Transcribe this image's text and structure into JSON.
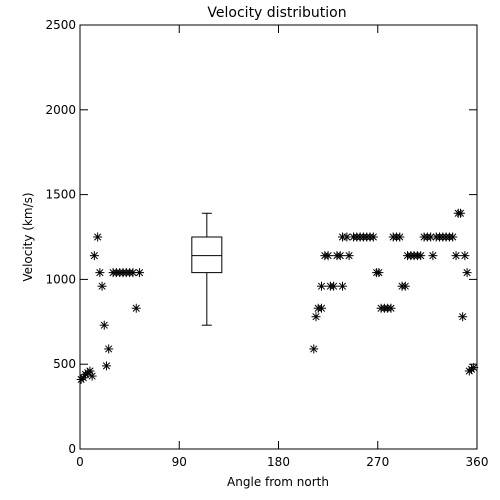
{
  "chart_data": {
    "type": "scatter",
    "title": "Velocity distribution",
    "xlabel": "Angle from north",
    "ylabel": "Velocity (km/s)",
    "xlim": [
      0,
      360
    ],
    "ylim": [
      0,
      2500
    ],
    "x_ticks": [
      0,
      90,
      180,
      270,
      360
    ],
    "x_tick_labels": [
      "0",
      "90",
      "180",
      "270",
      "360"
    ],
    "y_ticks": [
      0,
      500,
      1000,
      1500,
      2000,
      2500
    ],
    "y_tick_labels": [
      "0",
      "500",
      "1000",
      "1500",
      "2000",
      "2500"
    ],
    "grid": false,
    "legend": "none",
    "marker": "asterisk",
    "points": [
      {
        "x": 1,
        "y": 410
      },
      {
        "x": 3,
        "y": 420
      },
      {
        "x": 5,
        "y": 440
      },
      {
        "x": 7,
        "y": 450
      },
      {
        "x": 9,
        "y": 460
      },
      {
        "x": 11,
        "y": 430
      },
      {
        "x": 13,
        "y": 1140
      },
      {
        "x": 16,
        "y": 1250
      },
      {
        "x": 18,
        "y": 1040
      },
      {
        "x": 20,
        "y": 960
      },
      {
        "x": 22,
        "y": 730
      },
      {
        "x": 24,
        "y": 490
      },
      {
        "x": 26,
        "y": 590
      },
      {
        "x": 30,
        "y": 1040
      },
      {
        "x": 33,
        "y": 1040
      },
      {
        "x": 36,
        "y": 1040
      },
      {
        "x": 39,
        "y": 1040
      },
      {
        "x": 42,
        "y": 1040
      },
      {
        "x": 45,
        "y": 1040
      },
      {
        "x": 48,
        "y": 1040
      },
      {
        "x": 51,
        "y": 830
      },
      {
        "x": 54,
        "y": 1040
      },
      {
        "x": 212,
        "y": 590
      },
      {
        "x": 214,
        "y": 780
      },
      {
        "x": 216,
        "y": 830
      },
      {
        "x": 219,
        "y": 830
      },
      {
        "x": 219,
        "y": 960
      },
      {
        "x": 222,
        "y": 1140
      },
      {
        "x": 225,
        "y": 1140
      },
      {
        "x": 227,
        "y": 960
      },
      {
        "x": 230,
        "y": 960
      },
      {
        "x": 233,
        "y": 1140
      },
      {
        "x": 236,
        "y": 1140
      },
      {
        "x": 238,
        "y": 960
      },
      {
        "x": 238,
        "y": 1250
      },
      {
        "x": 242,
        "y": 1250
      },
      {
        "x": 244,
        "y": 1140
      },
      {
        "x": 248,
        "y": 1250
      },
      {
        "x": 251,
        "y": 1250
      },
      {
        "x": 254,
        "y": 1250
      },
      {
        "x": 257,
        "y": 1250
      },
      {
        "x": 260,
        "y": 1250
      },
      {
        "x": 263,
        "y": 1250
      },
      {
        "x": 266,
        "y": 1250
      },
      {
        "x": 269,
        "y": 1040
      },
      {
        "x": 271,
        "y": 1040
      },
      {
        "x": 273,
        "y": 830
      },
      {
        "x": 276,
        "y": 830
      },
      {
        "x": 279,
        "y": 830
      },
      {
        "x": 282,
        "y": 830
      },
      {
        "x": 284,
        "y": 1250
      },
      {
        "x": 287,
        "y": 1250
      },
      {
        "x": 290,
        "y": 1250
      },
      {
        "x": 292,
        "y": 960
      },
      {
        "x": 295,
        "y": 960
      },
      {
        "x": 297,
        "y": 1140
      },
      {
        "x": 300,
        "y": 1140
      },
      {
        "x": 303,
        "y": 1140
      },
      {
        "x": 306,
        "y": 1140
      },
      {
        "x": 309,
        "y": 1140
      },
      {
        "x": 312,
        "y": 1250
      },
      {
        "x": 315,
        "y": 1250
      },
      {
        "x": 318,
        "y": 1250
      },
      {
        "x": 320,
        "y": 1140
      },
      {
        "x": 323,
        "y": 1250
      },
      {
        "x": 326,
        "y": 1250
      },
      {
        "x": 329,
        "y": 1250
      },
      {
        "x": 332,
        "y": 1250
      },
      {
        "x": 335,
        "y": 1250
      },
      {
        "x": 338,
        "y": 1250
      },
      {
        "x": 341,
        "y": 1140
      },
      {
        "x": 343,
        "y": 1390
      },
      {
        "x": 345,
        "y": 1390
      },
      {
        "x": 347,
        "y": 780
      },
      {
        "x": 349,
        "y": 1140
      },
      {
        "x": 351,
        "y": 1040
      },
      {
        "x": 353,
        "y": 460
      },
      {
        "x": 355,
        "y": 470
      },
      {
        "x": 357,
        "y": 480
      }
    ],
    "boxplot": {
      "x": 115,
      "min": 730,
      "q1": 1040,
      "median": 1140,
      "q3": 1250,
      "max": 1390
    }
  }
}
